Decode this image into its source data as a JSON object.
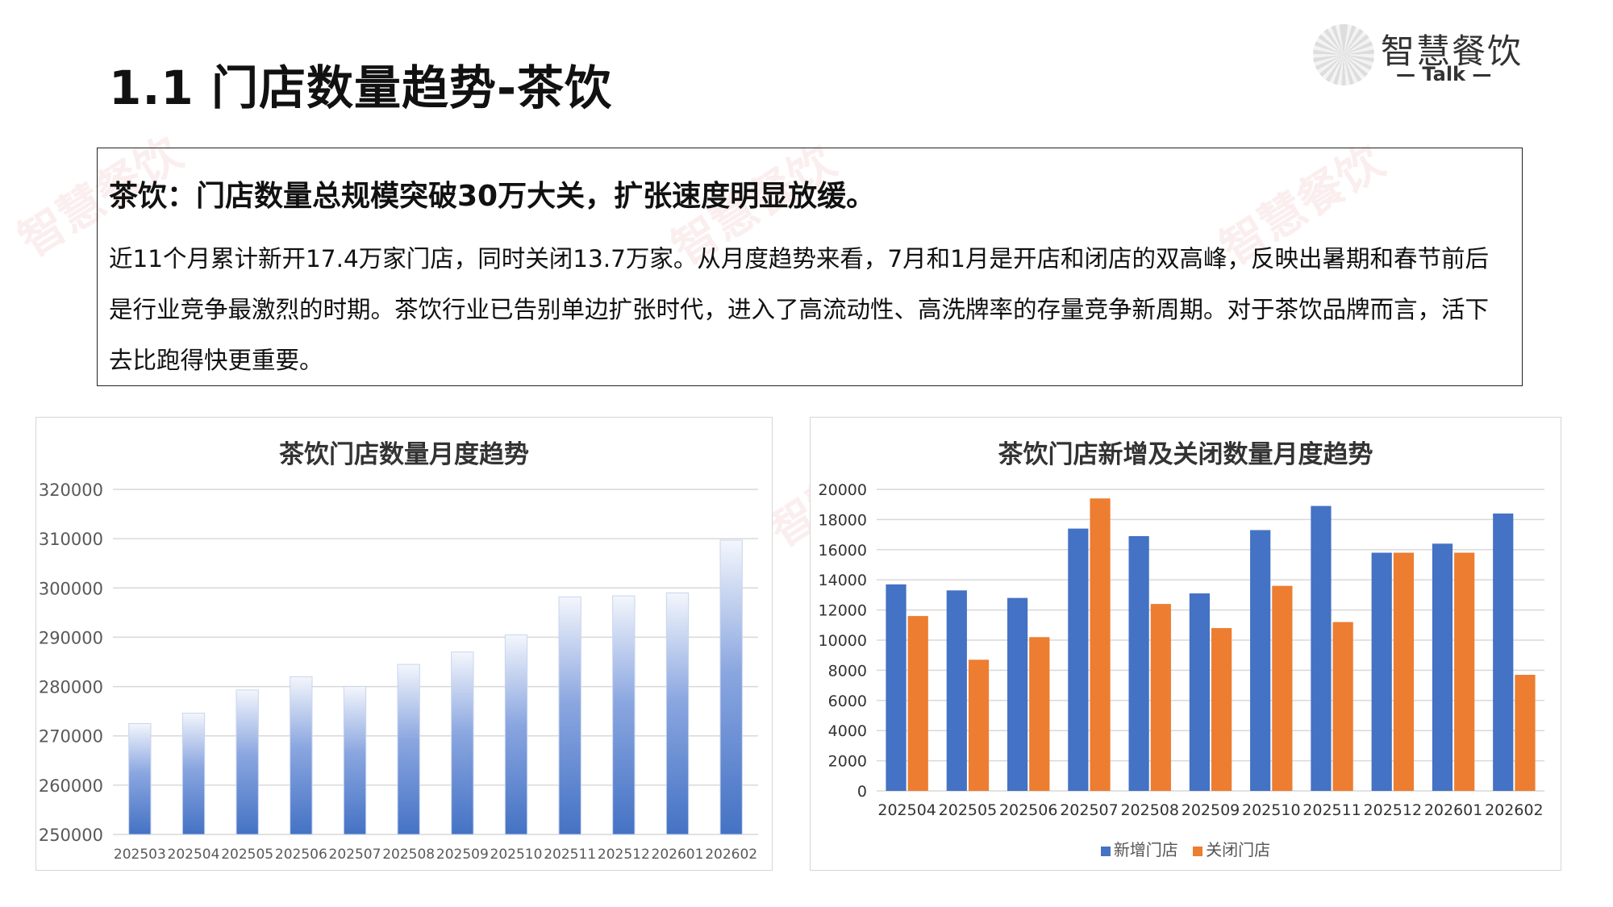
{
  "page": {
    "title": "1.1 门店数量趋势-茶饮",
    "logo": {
      "cn": "智慧餐饮",
      "en": "— Talk —"
    },
    "watermark": "智慧餐饮"
  },
  "summary": {
    "heading": "茶饮：门店数量总规模突破30万大关，扩张速度明显放缓。",
    "body": "近11个月累计新开17.4万家门店，同时关闭13.7万家。从月度趋势来看，7月和1月是开店和闭店的双高峰，反映出暑期和春节前后是行业竞争最激烈的时期。茶饮行业已告别单边扩张时代，进入了高流动性、高洗牌率的存量竞争新周期。对于茶饮品牌而言，活下去比跑得快更重要。"
  },
  "colors": {
    "blue": "#4472C4",
    "orange": "#ED7D31",
    "grid": "#d9d9d9",
    "axis_text": "#595959"
  },
  "chart_data": [
    {
      "type": "bar",
      "title": "茶饮门店数量月度趋势",
      "categories": [
        "202503",
        "202504",
        "202505",
        "202506",
        "202507",
        "202508",
        "202509",
        "202510",
        "202511",
        "202512",
        "202601",
        "202602"
      ],
      "series": [
        {
          "values": [
            272500,
            274600,
            279300,
            282000,
            280000,
            284500,
            287000,
            290500,
            298200,
            298400,
            299000,
            309700
          ]
        }
      ],
      "ylim": [
        250000,
        320000
      ],
      "yticks": [
        "250000",
        "260000",
        "270000",
        "280000",
        "290000",
        "300000",
        "310000",
        "320000"
      ],
      "grid": true,
      "legend": "none"
    },
    {
      "type": "bar",
      "title": "茶饮门店新增及关闭数量月度趋势",
      "categories": [
        "202504",
        "202505",
        "202506",
        "202507",
        "202508",
        "202509",
        "202510",
        "202511",
        "202512",
        "202601",
        "202602"
      ],
      "series": [
        {
          "name": "新增门店",
          "values": [
            13700,
            13300,
            12800,
            17400,
            16900,
            13100,
            17300,
            18900,
            15800,
            16400,
            18400
          ]
        },
        {
          "name": "关闭门店",
          "values": [
            11600,
            8700,
            10200,
            19400,
            12400,
            10800,
            13600,
            11200,
            15800,
            15800,
            7700
          ]
        }
      ],
      "ylim": [
        0,
        20000
      ],
      "yticks": [
        "0",
        "2000",
        "4000",
        "6000",
        "8000",
        "10000",
        "12000",
        "14000",
        "16000",
        "18000",
        "20000"
      ],
      "grid": true,
      "legend": "bottom"
    }
  ]
}
